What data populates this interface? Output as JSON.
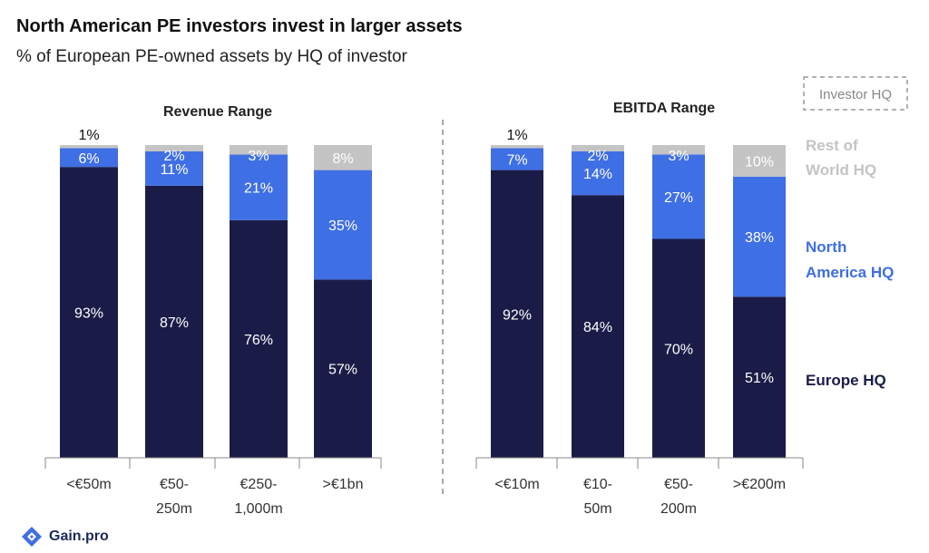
{
  "title": "North American PE investors invest in larger assets",
  "subtitle": "% of European PE-owned assets by HQ of investor",
  "legend_box_label": "Investor HQ",
  "logo_text": "Gain.pro",
  "colors": {
    "europe": "#1a1c47",
    "north_america": "#3f6fe4",
    "rest_of_world": "#c4c4c4",
    "na_label": "#3f6fe4",
    "row_label": "#c4c4c4"
  },
  "legend": [
    {
      "key": "rest_of_world",
      "lines": [
        "Rest of",
        "World HQ"
      ]
    },
    {
      "key": "north_america",
      "lines": [
        "North",
        "America HQ"
      ]
    },
    {
      "key": "europe",
      "lines": [
        "Europe HQ"
      ]
    }
  ],
  "chart_data": [
    {
      "type": "bar",
      "stacked": true,
      "title": "Revenue Range",
      "categories": [
        [
          "<€50m"
        ],
        [
          "€50-",
          "250m"
        ],
        [
          "€250-",
          "1,000m"
        ],
        [
          ">€1bn"
        ]
      ],
      "series": [
        {
          "name": "Europe HQ",
          "values": [
            93,
            87,
            76,
            57
          ]
        },
        {
          "name": "North America HQ",
          "values": [
            6,
            11,
            21,
            35
          ]
        },
        {
          "name": "Rest of World HQ",
          "values": [
            1,
            2,
            3,
            8
          ]
        }
      ],
      "ylim": [
        0,
        100
      ]
    },
    {
      "type": "bar",
      "stacked": true,
      "title": "EBITDA Range",
      "categories": [
        [
          "<€10m"
        ],
        [
          "€10-",
          "50m"
        ],
        [
          "€50-",
          "200m"
        ],
        [
          ">€200m"
        ]
      ],
      "series": [
        {
          "name": "Europe HQ",
          "values": [
            92,
            84,
            70,
            51
          ]
        },
        {
          "name": "North America HQ",
          "values": [
            7,
            14,
            27,
            38
          ]
        },
        {
          "name": "Rest of World HQ",
          "values": [
            1,
            2,
            3,
            10
          ]
        }
      ],
      "ylim": [
        0,
        100
      ]
    }
  ]
}
